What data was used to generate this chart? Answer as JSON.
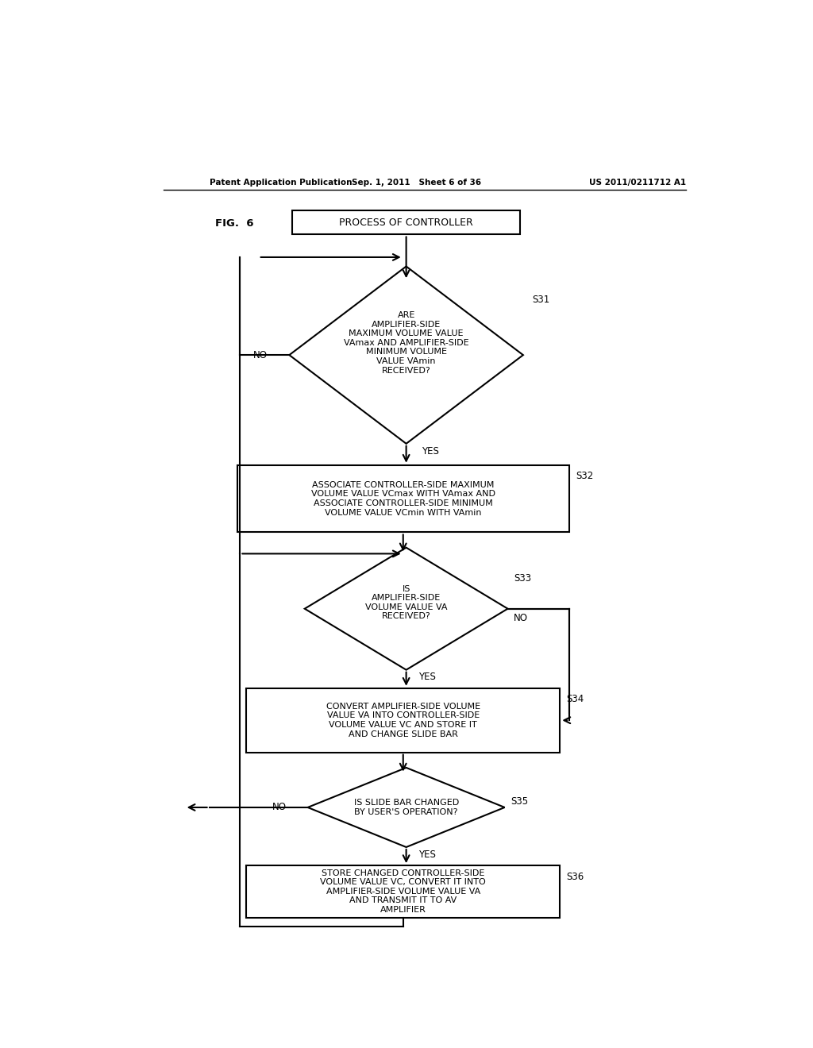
{
  "header_left": "Patent Application Publication",
  "header_mid": "Sep. 1, 2011   Sheet 6 of 36",
  "header_right": "US 2011/0211712 A1",
  "fig_label": "FIG.  6",
  "title_box": "PROCESS OF CONTROLLER",
  "s31_label": "S31",
  "s31_text": "ARE\nAMPLIFIER-SIDE\nMAXIMUM VOLUME VALUE\nVAmax AND AMPLIFIER-SIDE\nMINIMUM VOLUME\nVALUE VAmin\nRECEIVED?",
  "s31_no": "NO",
  "s31_yes": "YES",
  "s32_label": "S32",
  "s32_text": "ASSOCIATE CONTROLLER-SIDE MAXIMUM\nVOLUME VALUE VCmax WITH VAmax AND\nASSOCIATE CONTROLLER-SIDE MINIMUM\nVOLUME VALUE VCmin WITH VAmin",
  "s33_label": "S33",
  "s33_text": "IS\nAMPLIFIER-SIDE\nVOLUME VALUE VA\nRECEIVED?",
  "s33_no": "NO",
  "s33_yes": "YES",
  "s34_label": "S34",
  "s34_text": "CONVERT AMPLIFIER-SIDE VOLUME\nVALUE VA INTO CONTROLLER-SIDE\nVOLUME VALUE VC AND STORE IT\nAND CHANGE SLIDE BAR",
  "s35_label": "S35",
  "s35_text": "IS SLIDE BAR CHANGED\nBY USER'S OPERATION?",
  "s35_no": "NO",
  "s35_yes": "YES",
  "s36_label": "S36",
  "s36_text": "STORE CHANGED CONTROLLER-SIDE\nVOLUME VALUE VC, CONVERT IT INTO\nAMPLIFIER-SIDE VOLUME VALUE VA\nAND TRANSMIT IT TO AV\nAMPLIFIER",
  "bg_color": "#ffffff"
}
